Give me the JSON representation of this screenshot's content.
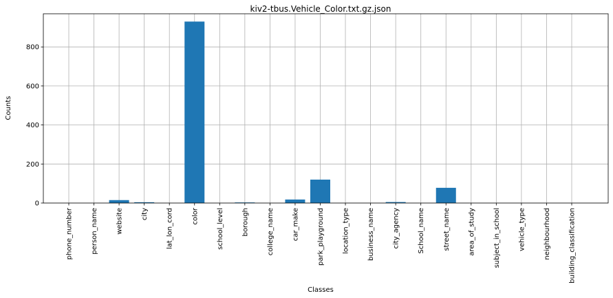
{
  "chart_data": {
    "type": "bar",
    "title": "kiv2-tbus.Vehicle_Color.txt.gz.json",
    "xlabel": "Classes",
    "ylabel": "Counts",
    "ylim": [
      0,
      970
    ],
    "yticks": [
      0,
      200,
      400,
      600,
      800
    ],
    "grid": true,
    "bar_color": "#1f77b4",
    "categories": [
      "phone_number",
      "person_name",
      "website",
      "city",
      "lat_lon_cord",
      "color",
      "school_level",
      "borough",
      "college_name",
      "car_make",
      "park_playground",
      "location_type",
      "business_name",
      "city_agency",
      "School_name",
      "street_name",
      "area_of_study",
      "subject_in_school",
      "vehicle_type",
      "neighbourhood",
      "building_classification"
    ],
    "values": [
      0,
      0,
      15,
      4,
      0,
      930,
      0,
      3,
      0,
      18,
      120,
      0,
      0,
      5,
      0,
      78,
      0,
      0,
      0,
      0,
      0
    ]
  }
}
